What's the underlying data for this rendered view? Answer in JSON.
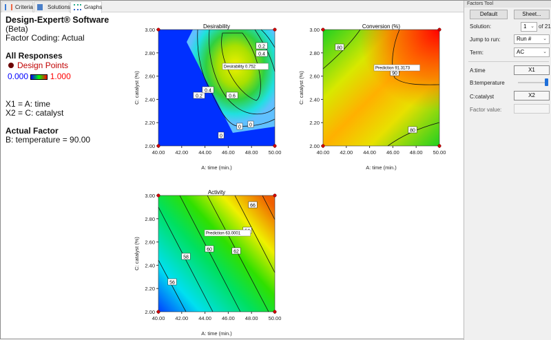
{
  "tabs": [
    {
      "label": "Criteria"
    },
    {
      "label": "Solutions"
    },
    {
      "label": "Graphs"
    }
  ],
  "legend": {
    "title": "Design-Expert® Software",
    "subtitle": "(Beta)",
    "coding": "Factor Coding: Actual",
    "responses": "All Responses",
    "design_points": "Design Points",
    "scale_min": "0.000",
    "scale_max": "1.000",
    "x1": "X1 = A: time",
    "x2": "X2 = C: catalyst",
    "actual_factor": "Actual Factor",
    "temperature": "B: temperature = 90.00"
  },
  "axes": {
    "xticks": [
      "40.00",
      "42.00",
      "44.00",
      "46.00",
      "48.00",
      "50.00"
    ],
    "yticks": [
      "2.00",
      "2.20",
      "2.40",
      "2.60",
      "2.80",
      "3.00"
    ],
    "xlabel": "A: time (min.)",
    "ylabel": "C: catalyst (%)"
  },
  "plots": {
    "desirability": {
      "title": "Desirability",
      "flag": "Desirability  0.752",
      "contours": [
        "0.2",
        "0.4",
        "0.2",
        "0.4",
        "0.6",
        "0",
        "0",
        "0"
      ]
    },
    "conversion": {
      "title": "Conversion (%)",
      "flag": "Prediction  91.3173",
      "contours": [
        "80",
        "90",
        "80"
      ]
    },
    "activity": {
      "title": "Activity",
      "flag": "Prediction  63.0001",
      "contours": [
        "56",
        "58",
        "60",
        "62",
        "64",
        "66"
      ]
    }
  },
  "tool": {
    "title": "Factors Tool",
    "default": "Default",
    "sheet": "Sheet...",
    "solution_label": "Solution:",
    "solution": "1",
    "of": "of 21",
    "jump_label": "Jump to run:",
    "jump": "Run #",
    "term_label": "Term:",
    "term": "AC",
    "a_label": "A:time",
    "a_value": "X1",
    "b_label": "B:temperature",
    "b_slider": 1.0,
    "c_label": "C:catalyst",
    "c_value": "X2",
    "fv_label": "Factor value:"
  }
}
